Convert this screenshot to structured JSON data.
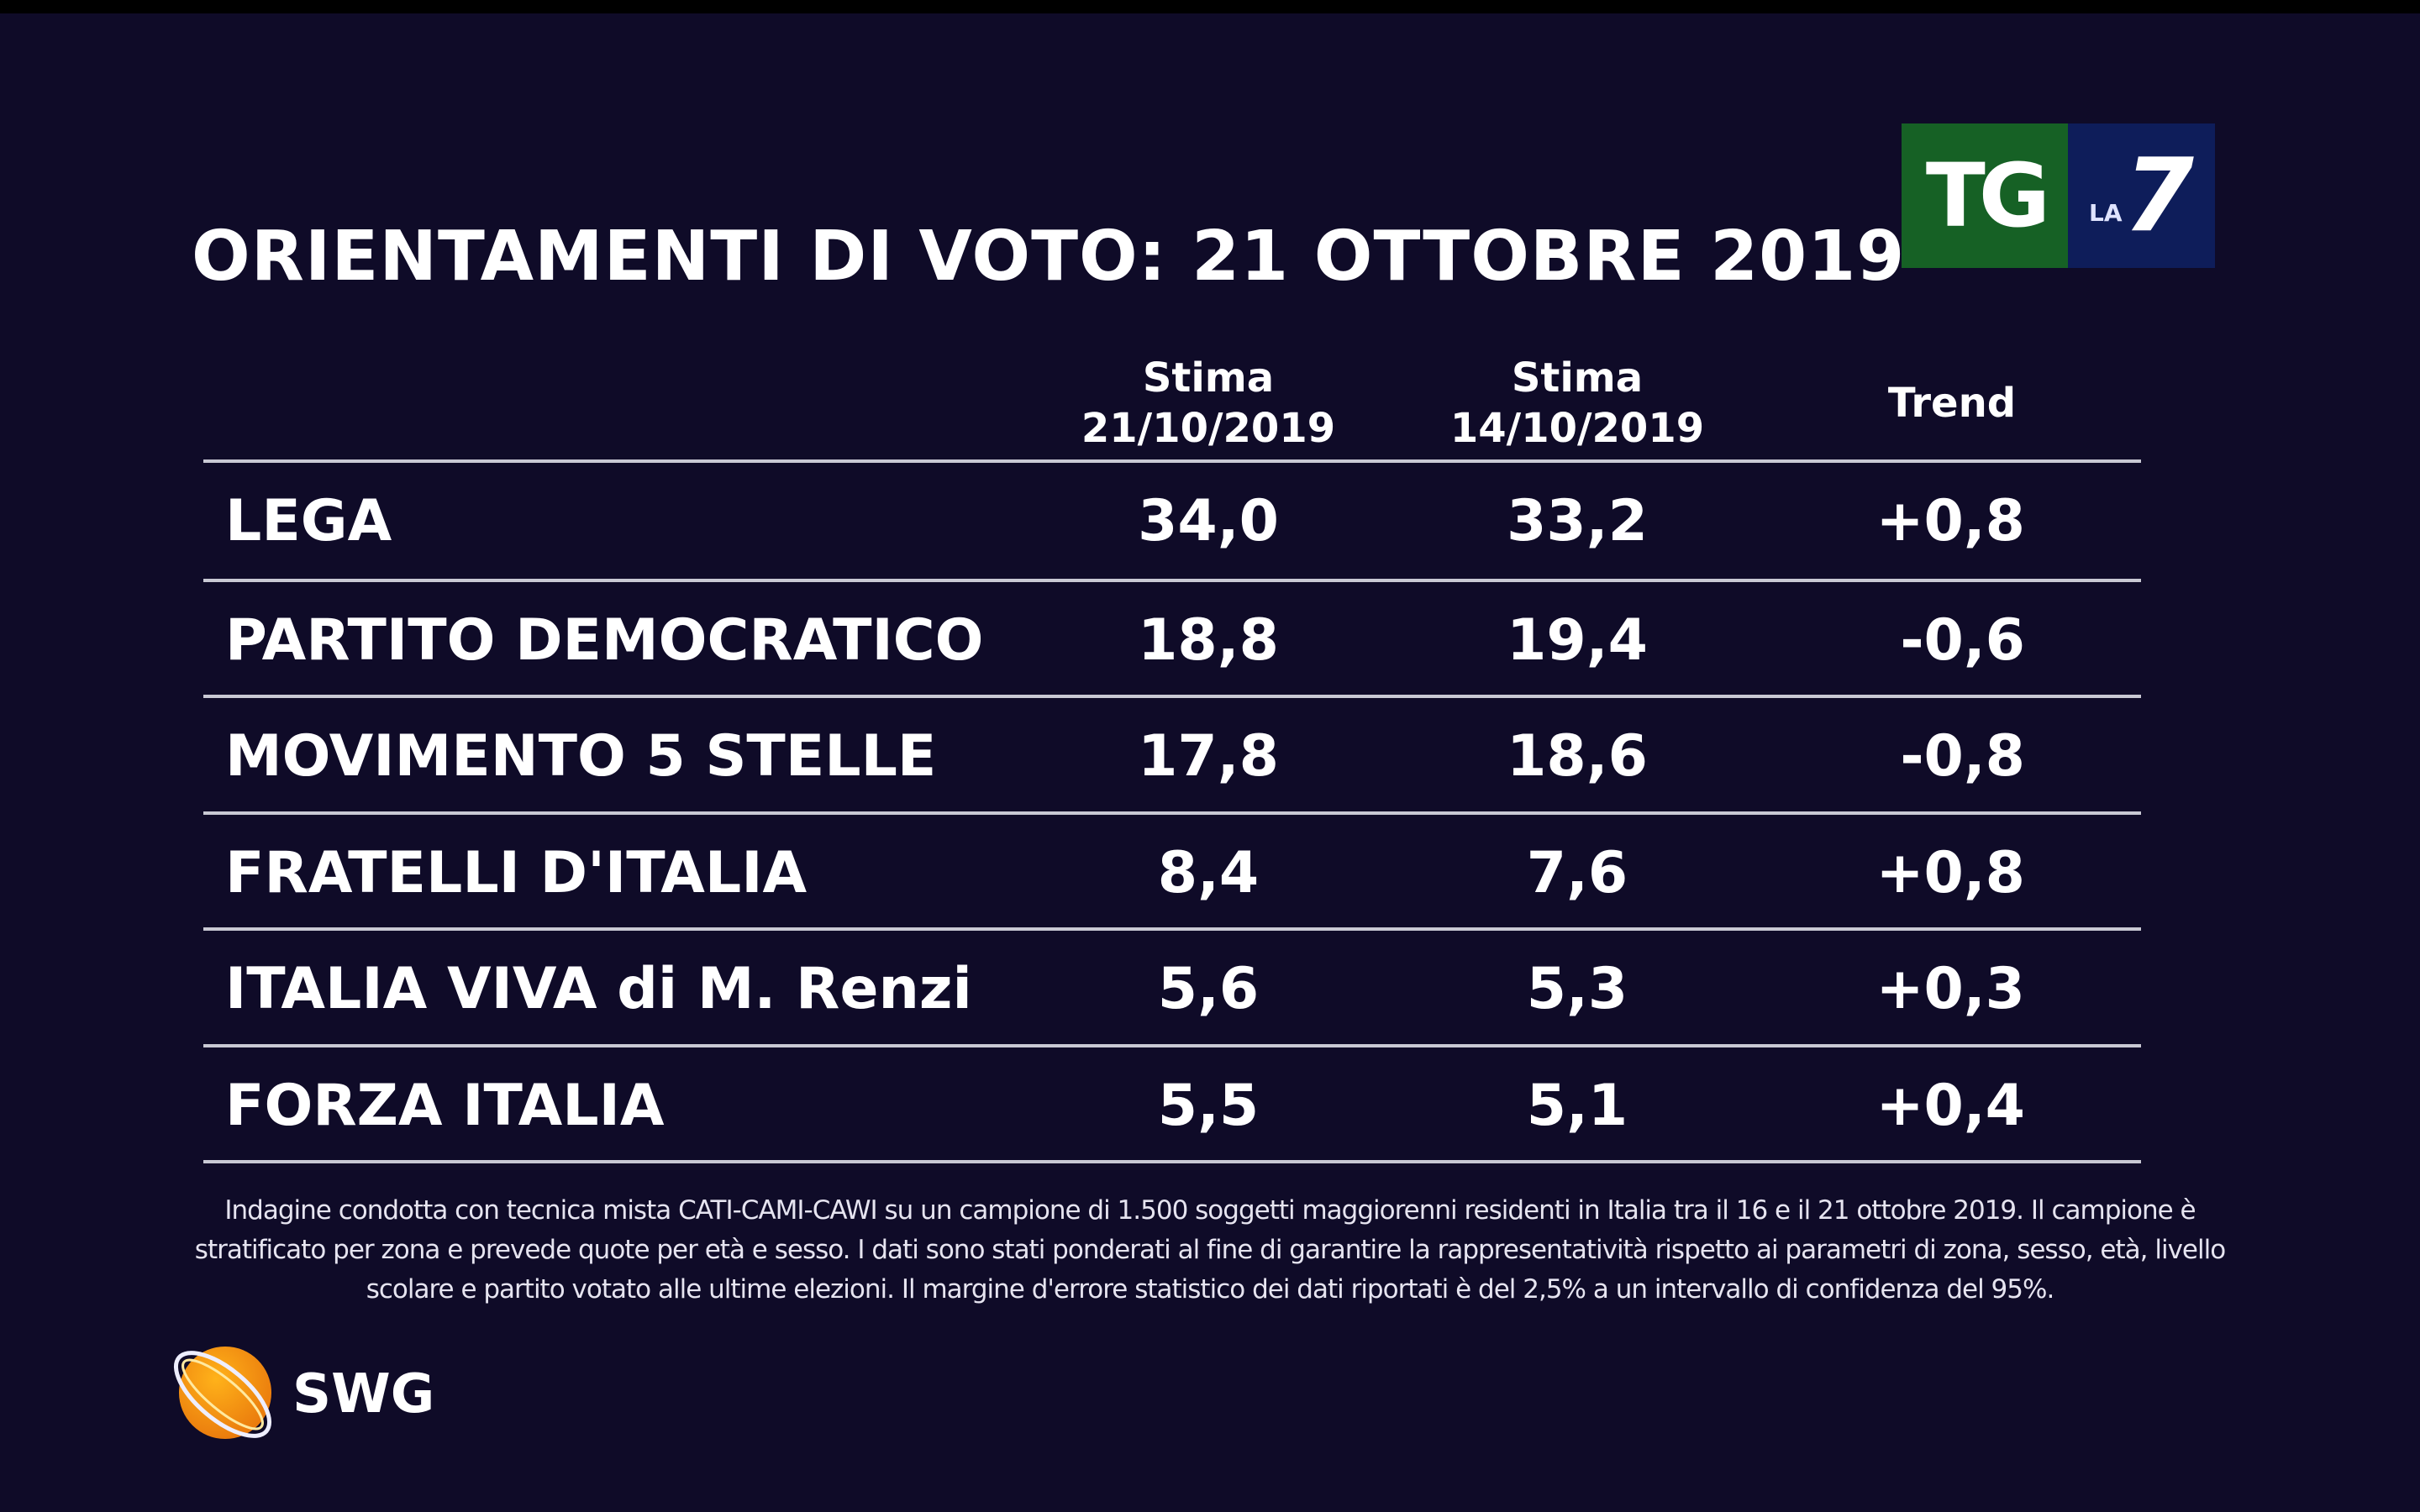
{
  "title": "ORIENTAMENTI DI VOTO: 21 OTTOBRE 2019",
  "logo": {
    "tg": "TG",
    "la": "LA",
    "seven": "7",
    "brand_green": "#166125",
    "brand_blue": "#0e1d5a"
  },
  "columns": [
    {
      "line1": "Stima",
      "line2": "21/10/2019"
    },
    {
      "line1": "Stima",
      "line2": "14/10/2019"
    },
    {
      "line1": "Trend"
    }
  ],
  "rows": [
    {
      "party": "LEGA",
      "current": "34,0",
      "previous": "33,2",
      "trend": "+0,8"
    },
    {
      "party": "PARTITO DEMOCRATICO",
      "current": "18,8",
      "previous": "19,4",
      "trend": "-0,6"
    },
    {
      "party": "MOVIMENTO 5 STELLE",
      "current": "17,8",
      "previous": "18,6",
      "trend": "-0,8"
    },
    {
      "party": "FRATELLI D'ITALIA",
      "current": "8,4",
      "previous": "7,6",
      "trend": "+0,8"
    },
    {
      "party": "ITALIA VIVA di M. Renzi",
      "current": "5,6",
      "previous": "5,3",
      "trend": "+0,3"
    },
    {
      "party": "FORZA ITALIA",
      "current": "5,5",
      "previous": "5,1",
      "trend": "+0,4"
    }
  ],
  "footnote": "Indagine condotta con tecnica mista CATI-CAMI-CAWI su un campione di 1.500 soggetti maggiorenni residenti in Italia tra il 16 e il 21 ottobre 2019. Il campione è stratificato per zona e prevede quote per età e sesso. I dati sono stati ponderati al fine di garantire la rappresentatività rispetto ai parametri di zona, sesso, età, livello scolare e partito votato alle ultime elezioni. Il margine d'errore statistico dei dati riportati è del 2,5% a un intervallo di confidenza del 95%.",
  "source": {
    "name": "SWG",
    "logo_color": "#f39a12"
  }
}
